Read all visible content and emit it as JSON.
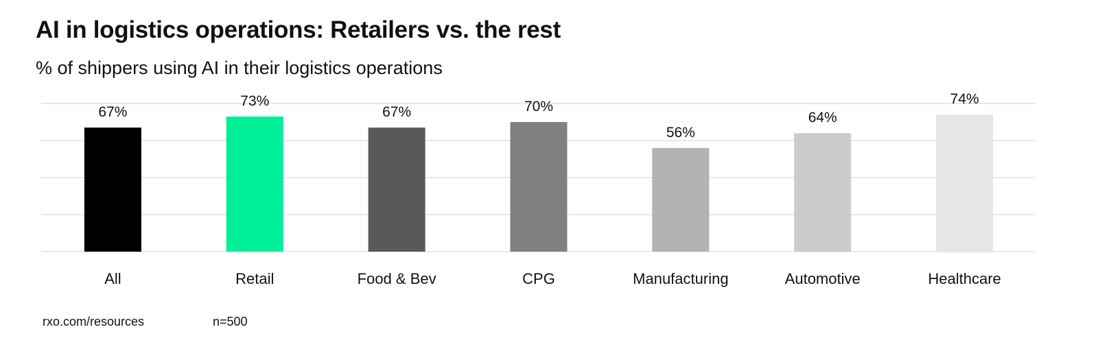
{
  "title": "AI in logistics operations: Retailers vs. the rest",
  "subtitle": "% of shippers using AI in their logistics operations",
  "footer": {
    "source": "rxo.com/resources",
    "sample": "n=500"
  },
  "chart_data": {
    "type": "bar",
    "categories": [
      "All",
      "Retail",
      "Food & Bev",
      "CPG",
      "Manufacturing",
      "Automotive",
      "Healthcare"
    ],
    "values": [
      67,
      73,
      67,
      70,
      56,
      64,
      74
    ],
    "data_labels": [
      "67%",
      "73%",
      "67%",
      "70%",
      "56%",
      "64%",
      "74%"
    ],
    "colors": [
      "#000000",
      "#00F09A",
      "#595959",
      "#808080",
      "#B3B3B3",
      "#CCCCCC",
      "#E6E6E6"
    ],
    "ylim": [
      0,
      80
    ],
    "gridlines": [
      0,
      20,
      40,
      60,
      80
    ],
    "grid": true,
    "legend": "none",
    "xlabel": "",
    "ylabel": ""
  }
}
